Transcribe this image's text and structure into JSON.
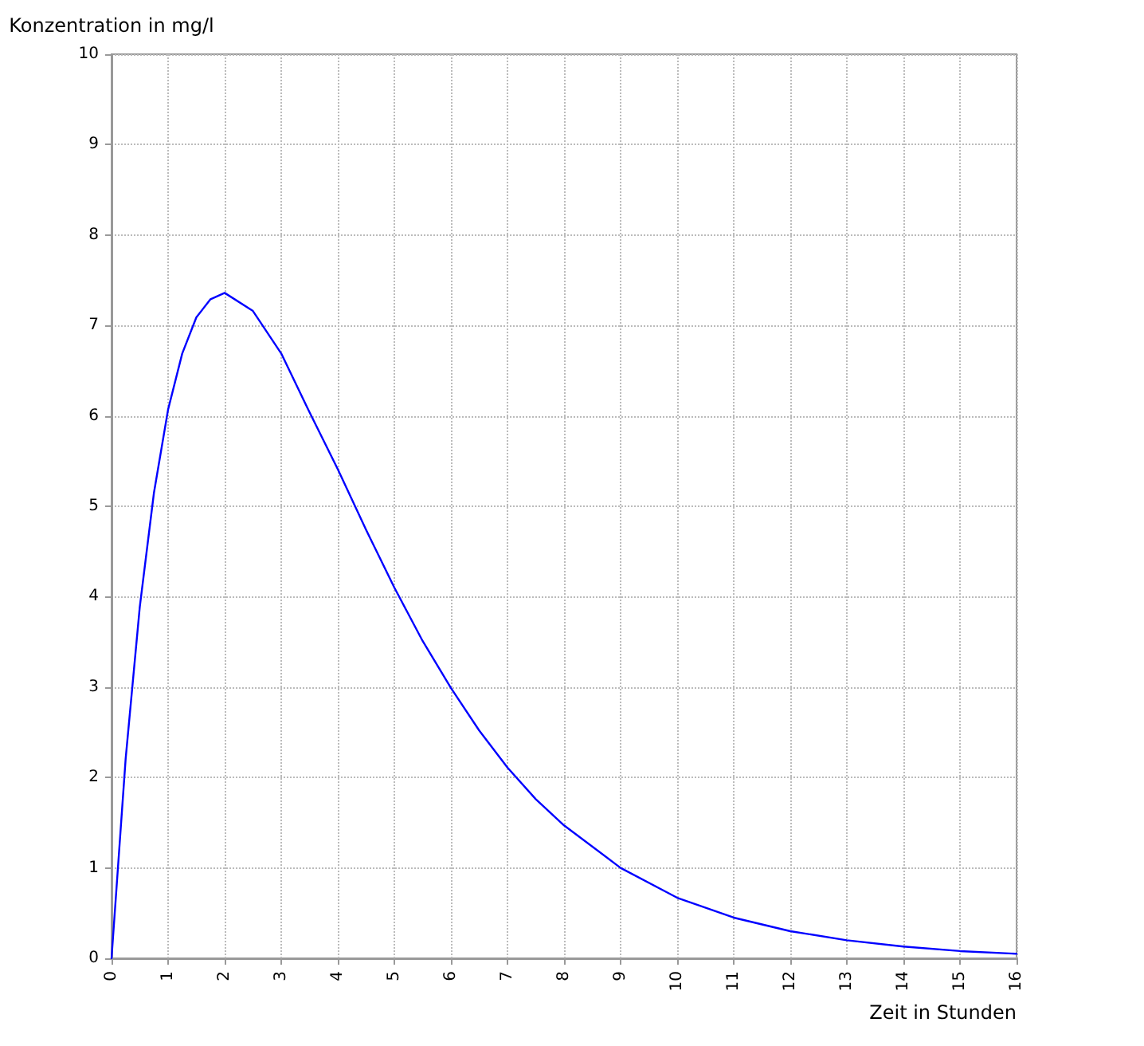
{
  "chart_data": {
    "type": "line",
    "xlabel": "Zeit in Stunden",
    "ylabel": "Konzentration in mg/l",
    "xlim": [
      0,
      16
    ],
    "ylim": [
      0,
      10
    ],
    "xticks": [
      0,
      1,
      2,
      3,
      4,
      5,
      6,
      7,
      8,
      9,
      10,
      11,
      12,
      13,
      14,
      15,
      16
    ],
    "yticks": [
      0,
      1,
      2,
      3,
      4,
      5,
      6,
      7,
      8,
      9,
      10
    ],
    "grid": true,
    "marker": "none",
    "line_style": "solid",
    "series": [
      {
        "color": "#0000ff",
        "x": [
          0,
          0.25,
          0.5,
          0.75,
          1,
          1.25,
          1.5,
          1.75,
          2,
          2.5,
          3,
          3.5,
          4,
          4.5,
          5,
          5.5,
          6,
          6.5,
          7,
          7.5,
          8,
          9,
          10,
          11,
          12,
          13,
          14,
          15,
          16
        ],
        "values": [
          0,
          2.21,
          3.89,
          5.15,
          6.07,
          6.69,
          7.09,
          7.29,
          7.36,
          7.16,
          6.69,
          6.04,
          5.41,
          4.74,
          4.1,
          3.51,
          2.99,
          2.52,
          2.11,
          1.76,
          1.47,
          1.0,
          0.67,
          0.45,
          0.3,
          0.2,
          0.13,
          0.08,
          0.05
        ]
      }
    ]
  }
}
